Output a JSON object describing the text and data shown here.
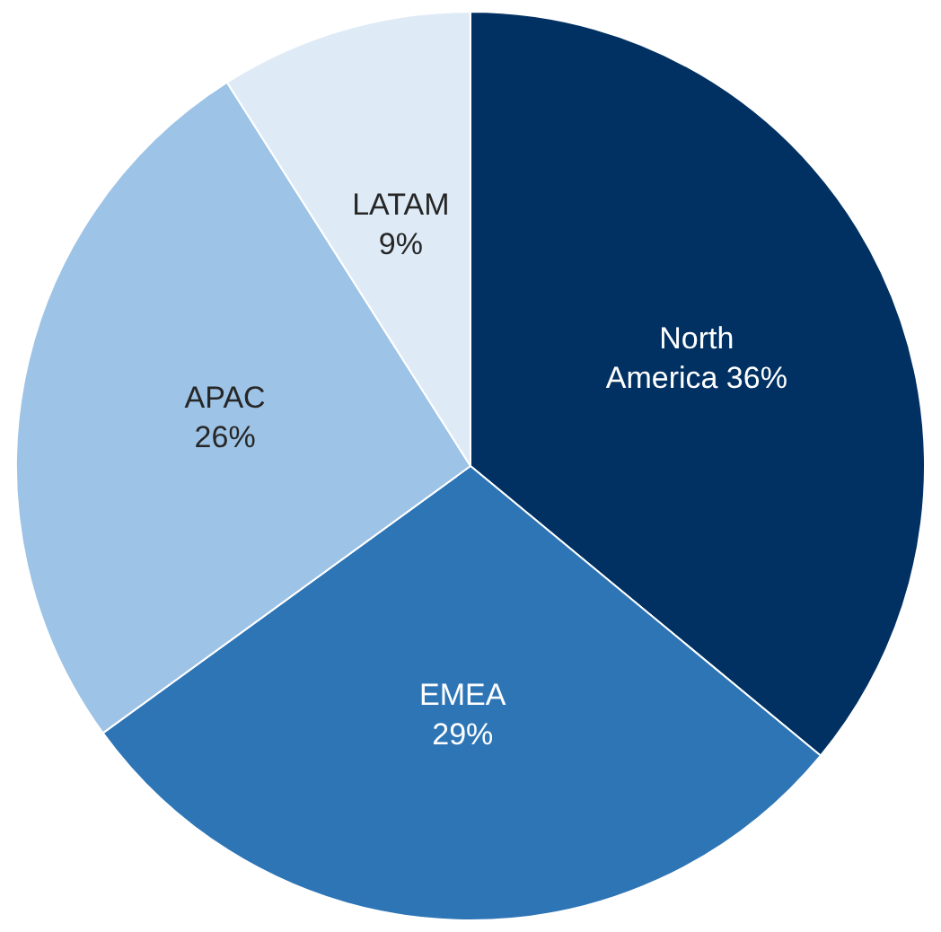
{
  "chart_data": {
    "type": "pie",
    "categories": [
      "North America",
      "EMEA",
      "APAC",
      "LATAM"
    ],
    "values": [
      36,
      29,
      26,
      9
    ],
    "value_labels": [
      "36%",
      "29%",
      "26%",
      "9%"
    ],
    "colors": [
      "#003162",
      "#2e75b6",
      "#9dc3e6",
      "#deebf7"
    ],
    "legend": false
  }
}
